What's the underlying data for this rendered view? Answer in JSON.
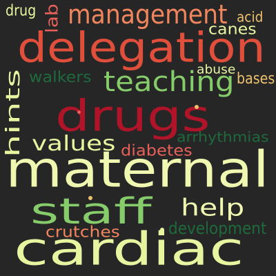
{
  "background_color": "#262626",
  "words": [
    {
      "text": "drug",
      "color": "#e8f5a0"
    },
    {
      "text": "lab",
      "color": "#e8605a"
    },
    {
      "text": "management",
      "color": "#f0855e"
    },
    {
      "text": "acid",
      "color": "#ecc26e"
    },
    {
      "text": "canes",
      "color": "#e8f5a0"
    },
    {
      "text": "delegation",
      "color": "#e04e3c"
    },
    {
      "text": "walkers",
      "color": "#1e6a3c"
    },
    {
      "text": "abuse",
      "color": "#e8f5a0"
    },
    {
      "text": "teaching",
      "color": "#86cc6a"
    },
    {
      "text": "bases",
      "color": "#ecc26e"
    },
    {
      "text": "hints",
      "color": "#e8f5a0"
    },
    {
      "text": "drugs",
      "color": "#b01428"
    },
    {
      "text": "values",
      "color": "#e8f5a0"
    },
    {
      "text": "arrhythmias",
      "color": "#1e6a3c"
    },
    {
      "text": "diabetes",
      "color": "#e8605a"
    },
    {
      "text": "maternal",
      "color": "#f0f7b0"
    },
    {
      "text": "staff",
      "color": "#86cc6a"
    },
    {
      "text": "help",
      "color": "#f0f7b0"
    },
    {
      "text": "crutches",
      "color": "#f0855e"
    },
    {
      "text": "development",
      "color": "#1e6a3c"
    },
    {
      "text": "cardiac",
      "color": "#e8f5a0"
    }
  ],
  "dots": [
    {
      "color": "#ecc26e"
    },
    {
      "color": "#ecc26e"
    },
    {
      "color": "#e8f5a0"
    },
    {
      "color": "#e8605a"
    }
  ]
}
